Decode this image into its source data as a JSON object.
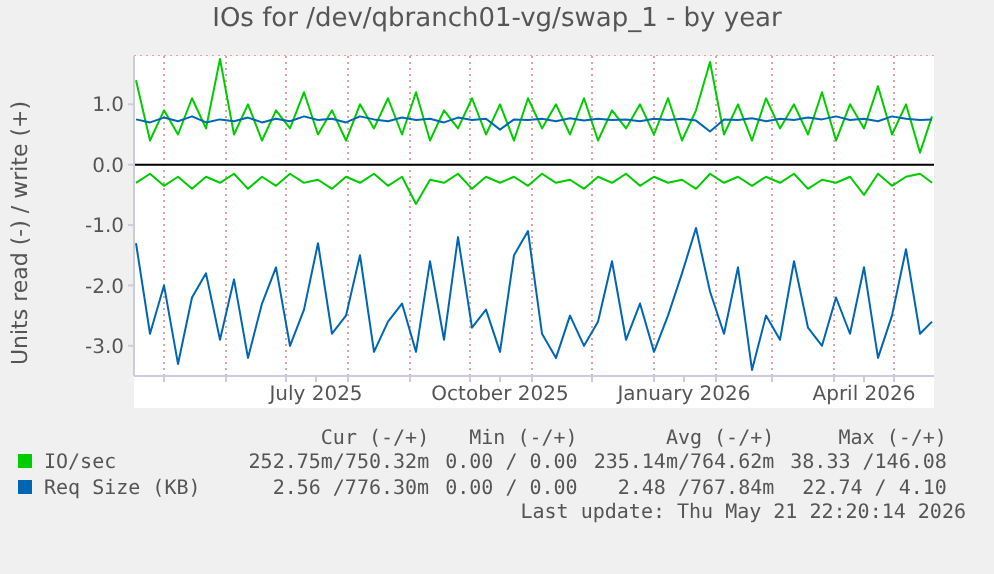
{
  "chart_data": {
    "type": "line",
    "title": "IOs for /dev/qbranch01-vg/swap_1 - by year",
    "ylabel": "Units read (-) / write (+)",
    "x": [
      "2025-04-17",
      "2025-04-24",
      "2025-05-01",
      "2025-05-08",
      "2025-05-15",
      "2025-05-22",
      "2025-05-29",
      "2025-06-05",
      "2025-06-12",
      "2025-06-19",
      "2025-06-26",
      "2025-07-03",
      "2025-07-10",
      "2025-07-17",
      "2025-07-24",
      "2025-07-31",
      "2025-08-07",
      "2025-08-14",
      "2025-08-21",
      "2025-08-28",
      "2025-09-04",
      "2025-09-11",
      "2025-09-18",
      "2025-09-25",
      "2025-10-02",
      "2025-10-09",
      "2025-10-16",
      "2025-10-23",
      "2025-10-30",
      "2025-11-06",
      "2025-11-13",
      "2025-11-20",
      "2025-11-27",
      "2025-12-04",
      "2025-12-11",
      "2025-12-18",
      "2025-12-25",
      "2026-01-01",
      "2026-01-08",
      "2026-01-15",
      "2026-01-22",
      "2026-01-29",
      "2026-02-05",
      "2026-02-12",
      "2026-02-19",
      "2026-02-26",
      "2026-03-05",
      "2026-03-12",
      "2026-03-19",
      "2026-03-26",
      "2026-04-02",
      "2026-04-09",
      "2026-04-16",
      "2026-04-23",
      "2026-04-30",
      "2026-05-07",
      "2026-05-14",
      "2026-05-20"
    ],
    "series": [
      {
        "name": "IO/sec",
        "color": "#00cc00",
        "values": [
          1.4,
          0.4,
          0.9,
          0.5,
          1.1,
          0.6,
          1.75,
          0.5,
          1.0,
          0.4,
          0.9,
          0.6,
          1.2,
          0.5,
          0.9,
          0.4,
          1.0,
          0.6,
          1.1,
          0.5,
          1.2,
          0.4,
          0.9,
          0.6,
          1.1,
          0.5,
          1.0,
          0.4,
          1.1,
          0.6,
          1.0,
          0.5,
          1.1,
          0.4,
          0.9,
          0.6,
          1.0,
          0.5,
          1.1,
          0.4,
          0.9,
          1.7,
          0.5,
          1.0,
          0.4,
          1.1,
          0.6,
          1.0,
          0.5,
          1.2,
          0.4,
          1.0,
          0.6,
          1.3,
          0.5,
          1.0,
          0.2,
          0.8
        ]
      },
      {
        "color": "#00cc00",
        "values": [
          -0.3,
          -0.15,
          -0.35,
          -0.2,
          -0.4,
          -0.2,
          -0.3,
          -0.15,
          -0.4,
          -0.2,
          -0.35,
          -0.15,
          -0.3,
          -0.25,
          -0.4,
          -0.2,
          -0.3,
          -0.15,
          -0.35,
          -0.2,
          -0.65,
          -0.25,
          -0.3,
          -0.15,
          -0.4,
          -0.2,
          -0.3,
          -0.2,
          -0.35,
          -0.15,
          -0.3,
          -0.25,
          -0.4,
          -0.2,
          -0.3,
          -0.15,
          -0.35,
          -0.2,
          -0.3,
          -0.25,
          -0.4,
          -0.15,
          -0.3,
          -0.2,
          -0.35,
          -0.2,
          -0.3,
          -0.15,
          -0.4,
          -0.25,
          -0.3,
          -0.2,
          -0.5,
          -0.15,
          -0.35,
          -0.2,
          -0.15,
          -0.3
        ]
      },
      {
        "name": "Req Size (KB)",
        "color": "#0066b3",
        "values": [
          0.75,
          0.7,
          0.78,
          0.72,
          0.8,
          0.7,
          0.75,
          0.72,
          0.78,
          0.7,
          0.76,
          0.72,
          0.8,
          0.74,
          0.76,
          0.7,
          0.8,
          0.75,
          0.72,
          0.78,
          0.74,
          0.76,
          0.7,
          0.78,
          0.74,
          0.76,
          0.58,
          0.75,
          0.74,
          0.76,
          0.72,
          0.77,
          0.73,
          0.76,
          0.74,
          0.75,
          0.72,
          0.76,
          0.74,
          0.76,
          0.73,
          0.55,
          0.75,
          0.74,
          0.77,
          0.72,
          0.76,
          0.74,
          0.78,
          0.75,
          0.8,
          0.74,
          0.76,
          0.72,
          0.8,
          0.76,
          0.74,
          0.75
        ]
      },
      {
        "color": "#0066b3",
        "values": [
          -1.3,
          -2.8,
          -2.0,
          -3.3,
          -2.2,
          -1.8,
          -2.9,
          -1.9,
          -3.2,
          -2.3,
          -1.7,
          -3.0,
          -2.4,
          -1.3,
          -2.8,
          -2.5,
          -1.5,
          -3.1,
          -2.6,
          -2.3,
          -3.1,
          -1.6,
          -2.9,
          -1.2,
          -2.7,
          -2.4,
          -3.1,
          -1.5,
          -1.1,
          -2.8,
          -3.2,
          -2.5,
          -3.0,
          -2.6,
          -1.6,
          -2.9,
          -2.3,
          -3.1,
          -2.5,
          -1.8,
          -1.05,
          -2.1,
          -2.8,
          -1.7,
          -3.4,
          -2.5,
          -2.9,
          -1.6,
          -2.7,
          -3.0,
          -2.2,
          -2.8,
          -1.7,
          -3.2,
          -2.5,
          -1.4,
          -2.8,
          -2.6
        ]
      }
    ],
    "xlim": [
      "2025-04-16",
      "2026-05-21"
    ],
    "xticks": [
      {
        "value": "2025-05-01",
        "label": null
      },
      {
        "value": "2025-06-01",
        "label": null
      },
      {
        "value": "2025-07-01",
        "label": null
      },
      {
        "value": "2025-07-16",
        "label": "July 2025"
      },
      {
        "value": "2025-08-01",
        "label": null
      },
      {
        "value": "2025-09-01",
        "label": null
      },
      {
        "value": "2025-10-01",
        "label": null
      },
      {
        "value": "2025-10-16",
        "label": "October 2025"
      },
      {
        "value": "2025-11-01",
        "label": null
      },
      {
        "value": "2025-12-01",
        "label": null
      },
      {
        "value": "2026-01-01",
        "label": null
      },
      {
        "value": "2026-01-16",
        "label": "January 2026"
      },
      {
        "value": "2026-02-01",
        "label": null
      },
      {
        "value": "2026-03-01",
        "label": null
      },
      {
        "value": "2026-04-01",
        "label": null
      },
      {
        "value": "2026-04-16",
        "label": "April 2026"
      },
      {
        "value": "2026-05-01",
        "label": null
      }
    ],
    "ylim": [
      -3.5,
      1.8
    ],
    "yticks": [
      {
        "value": -3,
        "label": "-3.0"
      },
      {
        "value": -2,
        "label": "-2.0"
      },
      {
        "value": -1,
        "label": "-1.0"
      },
      {
        "value": 0,
        "label": "0.0"
      },
      {
        "value": 1,
        "label": "1.0"
      }
    ],
    "ref_lines": [
      {
        "axis": "y",
        "value": 0,
        "color": "#000000"
      }
    ],
    "grid": true,
    "legend": "bottom left",
    "marker": "none",
    "line_style": "solid",
    "annotations": [
      "Cur (-/+)",
      "Min (-/+)",
      "Avg (-/+)",
      "Max (-/+)",
      "252.75m/750.32m",
      "0.00 / 0.00",
      "235.14m/764.62m",
      "38.33 /146.08",
      "2.56 /776.30m",
      "0.00 / 0.00",
      "2.48 /767.84m",
      "22.74 / 4.10",
      "Last update: Thu May 21 22:20:14 2026"
    ]
  }
}
